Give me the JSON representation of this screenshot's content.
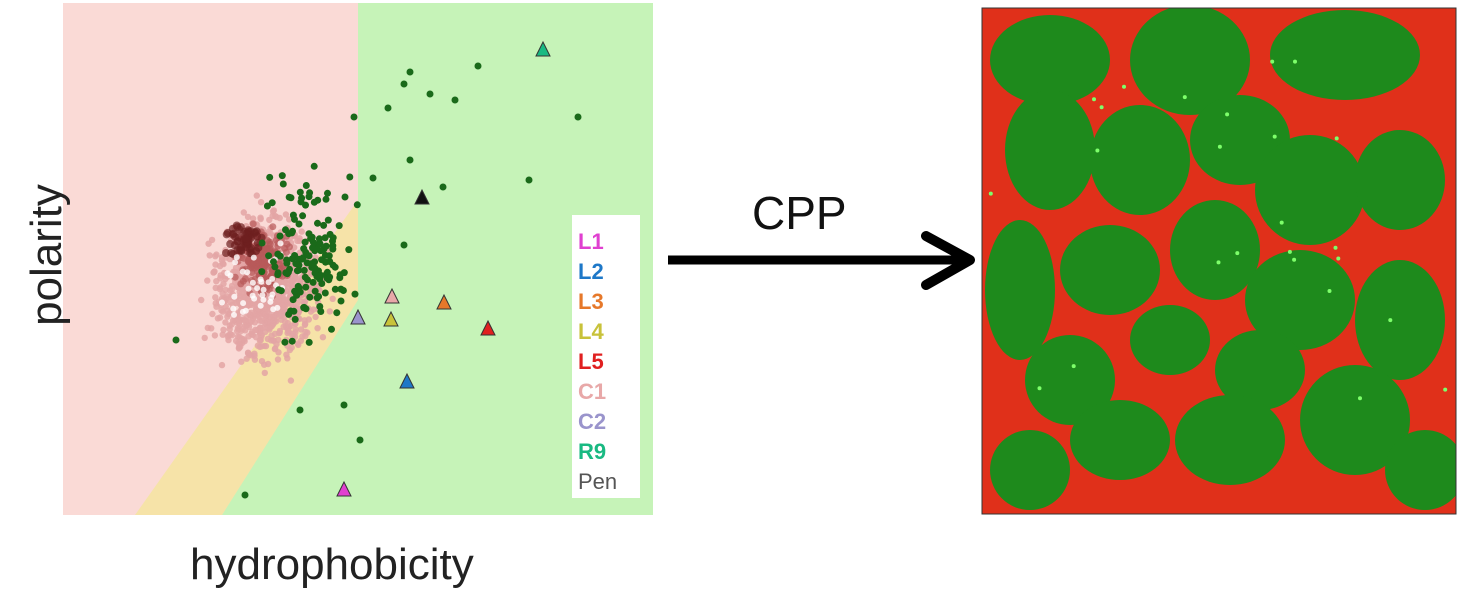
{
  "axes": {
    "x_label": "hydrophobicity",
    "y_label": "polarity"
  },
  "arrow": {
    "label": "CPP"
  },
  "legend": {
    "entries": [
      {
        "label": "L1",
        "color": "#e040d0"
      },
      {
        "label": "L2",
        "color": "#1e78c8"
      },
      {
        "label": "L3",
        "color": "#e6782a"
      },
      {
        "label": "L4",
        "color": "#c8c23a"
      },
      {
        "label": "L5",
        "color": "#e02020"
      },
      {
        "label": "C1",
        "color": "#e8a8a8"
      },
      {
        "label": "C2",
        "color": "#9a94cc"
      },
      {
        "label": "R9",
        "color": "#19b982"
      },
      {
        "label": "Pen",
        "color": "#555555"
      }
    ]
  },
  "regions": {
    "left_color": "#fadad6",
    "right_color": "#c6f3b8",
    "band_color": "#f6e3a8"
  },
  "micrograph": {
    "cell_color": "#1e8a1c",
    "membrane_color": "#e0301a"
  }
}
